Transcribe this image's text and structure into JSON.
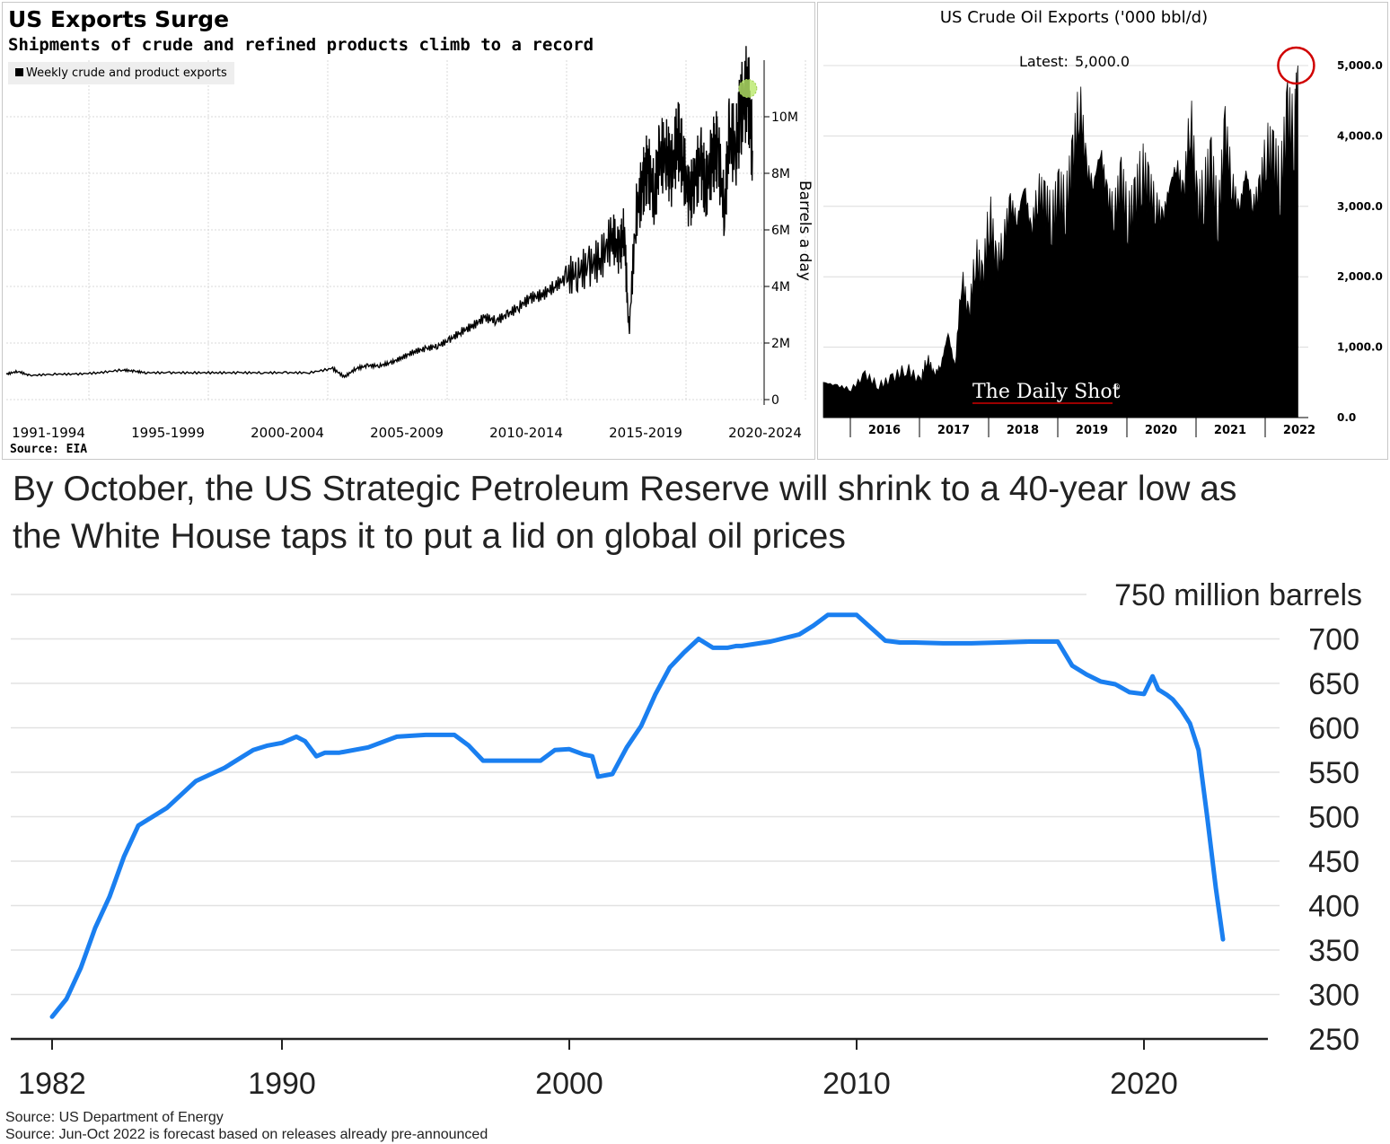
{
  "panel1": {
    "title": "US Exports Surge",
    "subtitle": "Shipments of crude and refined products climb to a record",
    "source": "Source: EIA",
    "chart_data": {
      "type": "line",
      "title": "US Exports Surge",
      "subtitle": "Shipments of crude and refined products climb to a record",
      "ylabel": "Barrels a day",
      "legend": [
        "Weekly crude and product exports"
      ],
      "legend_position": "top-left",
      "x_tick_labels": [
        "1991-1994",
        "1995-1999",
        "2000-2004",
        "2005-2009",
        "2010-2014",
        "2015-2019",
        "2020-2024"
      ],
      "y_tick_labels": [
        "0",
        "2M",
        "4M",
        "6M",
        "8M",
        "10M"
      ],
      "ylim": [
        0,
        12000000
      ],
      "xlim": [
        1991,
        2023.5
      ],
      "grid": true,
      "highlight": {
        "x": 2022.8,
        "y": 11000000,
        "marker": "green-circle"
      },
      "series": [
        {
          "name": "Weekly crude and product exports",
          "x": [
            1991,
            1991.5,
            1992,
            1993,
            1994,
            1995,
            1996,
            1996.5,
            1997,
            1998,
            1999,
            2000,
            2001,
            2002,
            2003,
            2004,
            2005,
            2005.5,
            2006,
            2006.5,
            2007,
            2007.5,
            2008,
            2008.5,
            2009,
            2009.5,
            2010,
            2010.5,
            2011,
            2011.5,
            2012,
            2012.5,
            2013,
            2013.5,
            2014,
            2014.5,
            2015,
            2015.5,
            2016,
            2016.5,
            2017,
            2017.3,
            2017.5,
            2017.7,
            2018,
            2018.3,
            2018.5,
            2018.8,
            2019,
            2019.3,
            2019.5,
            2019.8,
            2020,
            2020.3,
            2020.5,
            2020.8,
            2021,
            2021.3,
            2021.5,
            2021.8,
            2022,
            2022.3,
            2022.5,
            2022.8,
            2023
          ],
          "values": [
            900000,
            1000000,
            850000,
            900000,
            900000,
            950000,
            1050000,
            1000000,
            950000,
            950000,
            950000,
            950000,
            950000,
            950000,
            950000,
            950000,
            1100000,
            800000,
            1100000,
            1200000,
            1200000,
            1300000,
            1500000,
            1700000,
            1800000,
            1900000,
            2100000,
            2400000,
            2600000,
            2900000,
            2800000,
            3000000,
            3300000,
            3600000,
            3700000,
            4000000,
            4300000,
            4500000,
            4700000,
            5000000,
            5800000,
            5200000,
            6100000,
            2300000,
            6500000,
            7600000,
            8200000,
            7200000,
            8500000,
            8800000,
            8000000,
            9300000,
            8500000,
            7000000,
            7800000,
            8300000,
            7500000,
            8600000,
            8900000,
            6700000,
            9300000,
            9000000,
            10200000,
            11000000,
            8800000
          ]
        }
      ]
    }
  },
  "panel2": {
    "title": "US Crude Oil Exports ('000 bbl/d)",
    "latest_label": "Latest:",
    "latest_value": "5,000.0",
    "watermark": "The Daily Shot",
    "watermark_mark": "®",
    "chart_data": {
      "type": "area",
      "title": "US Crude Oil Exports ('000 bbl/d)",
      "x_tick_labels": [
        "2016",
        "2017",
        "2018",
        "2019",
        "2020",
        "2021",
        "2022"
      ],
      "y_tick_labels": [
        "0.0",
        "1,000.0",
        "2,000.0",
        "3,000.0",
        "4,000.0",
        "5,000.0"
      ],
      "ylim": [
        0,
        5000
      ],
      "xlim": [
        2015.6,
        2022.6
      ],
      "annotation": "Latest: 5,000.0",
      "highlight": {
        "x": 2022.45,
        "y": 5000,
        "marker": "red-circle"
      },
      "series": [
        {
          "name": "US Crude Oil Exports",
          "x": [
            2015.6,
            2015.8,
            2016.0,
            2016.2,
            2016.4,
            2016.6,
            2016.8,
            2017.0,
            2017.1,
            2017.2,
            2017.3,
            2017.4,
            2017.5,
            2017.6,
            2017.7,
            2017.8,
            2017.9,
            2018.0,
            2018.1,
            2018.2,
            2018.3,
            2018.4,
            2018.5,
            2018.6,
            2018.7,
            2018.8,
            2018.9,
            2019.0,
            2019.1,
            2019.2,
            2019.3,
            2019.4,
            2019.5,
            2019.6,
            2019.7,
            2019.8,
            2019.9,
            2020.0,
            2020.1,
            2020.2,
            2020.3,
            2020.4,
            2020.5,
            2020.6,
            2020.7,
            2020.8,
            2020.9,
            2021.0,
            2021.1,
            2021.2,
            2021.3,
            2021.4,
            2021.5,
            2021.6,
            2021.7,
            2021.8,
            2021.9,
            2022.0,
            2022.1,
            2022.2,
            2022.3,
            2022.4,
            2022.45
          ],
          "values": [
            500,
            450,
            400,
            600,
            450,
            550,
            700,
            500,
            850,
            600,
            750,
            1200,
            700,
            2000,
            1400,
            2300,
            1900,
            2900,
            2100,
            2500,
            3000,
            2800,
            3300,
            2600,
            3200,
            3000,
            2800,
            3100,
            3000,
            3600,
            4500,
            3500,
            3300,
            3800,
            3100,
            2900,
            3300,
            2800,
            3000,
            3500,
            3200,
            3000,
            2800,
            3300,
            3600,
            3100,
            4300,
            2900,
            3200,
            3500,
            2800,
            4000,
            3300,
            2900,
            3500,
            3000,
            3200,
            3800,
            3600,
            3300,
            4200,
            4000,
            5000
          ]
        }
      ]
    }
  },
  "panel3": {
    "title_line1": "By October, the US Strategic Petroleum Reserve will shrink to a 40-year low as",
    "title_line2": "the White House taps it to put a lid on global oil prices",
    "source_line1": "Source: US Department of Energy",
    "source_line2": "Source: Jun-Oct 2022 is forecast based on releases already pre-announced",
    "line_color": "#1a7ff0",
    "chart_data": {
      "type": "line",
      "title": "By October, the US Strategic Petroleum Reserve will shrink to a 40-year low as the White House taps it to put a lid on global oil prices",
      "ylabel": "750 million barrels",
      "x_tick_labels": [
        "1982",
        "1990",
        "2000",
        "2010",
        "2020"
      ],
      "y_tick_labels": [
        "250",
        "300",
        "350",
        "400",
        "450",
        "500",
        "550",
        "600",
        "650",
        "700",
        "750 million barrels"
      ],
      "xlim": [
        1982,
        2023
      ],
      "ylim": [
        250,
        750
      ],
      "grid": true,
      "series": [
        {
          "name": "Strategic Petroleum Reserve",
          "x": [
            1982,
            1982.5,
            1983,
            1983.5,
            1984,
            1984.5,
            1985,
            1985.5,
            1986,
            1987,
            1988,
            1989,
            1989.5,
            1990,
            1990.5,
            1990.8,
            1991.2,
            1991.5,
            1992,
            1993,
            1994,
            1995,
            1996,
            1996.5,
            1997,
            1998,
            1999,
            1999.5,
            2000,
            2000.5,
            2000.8,
            2001,
            2001.5,
            2002,
            2002.5,
            2003,
            2003.5,
            2004,
            2004.5,
            2005,
            2005.5,
            2005.8,
            2006,
            2007,
            2008,
            2008.5,
            2009,
            2009.5,
            2010,
            2011,
            2011.5,
            2012,
            2013,
            2014,
            2015,
            2016,
            2017,
            2017.5,
            2018,
            2018.5,
            2019,
            2019.5,
            2020,
            2020.3,
            2020.5,
            2020.8,
            2021,
            2021.3,
            2021.6,
            2021.9,
            2022.2,
            2022.5,
            2022.75
          ],
          "values": [
            275,
            295,
            330,
            375,
            410,
            455,
            490,
            500,
            510,
            540,
            555,
            575,
            580,
            583,
            590,
            585,
            568,
            572,
            572,
            578,
            590,
            592,
            592,
            580,
            563,
            563,
            563,
            575,
            576,
            570,
            568,
            545,
            548,
            578,
            602,
            638,
            668,
            685,
            700,
            690,
            690,
            692,
            692,
            697,
            705,
            715,
            727,
            727,
            727,
            698,
            696,
            696,
            695,
            695,
            696,
            697,
            697,
            670,
            660,
            652,
            649,
            640,
            638,
            658,
            643,
            637,
            632,
            620,
            605,
            575,
            500,
            420,
            362
          ]
        }
      ]
    }
  }
}
